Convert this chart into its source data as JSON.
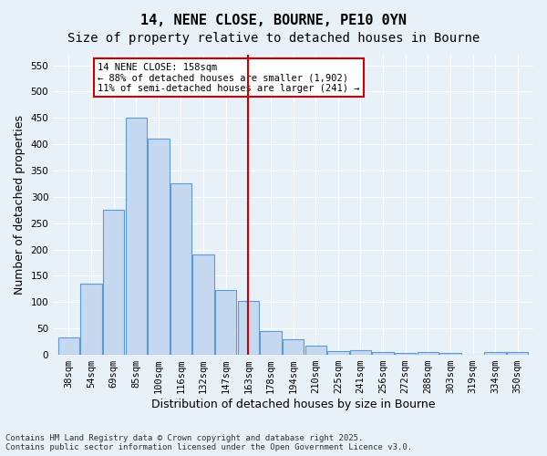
{
  "title": "14, NENE CLOSE, BOURNE, PE10 0YN",
  "subtitle": "Size of property relative to detached houses in Bourne",
  "xlabel": "Distribution of detached houses by size in Bourne",
  "ylabel": "Number of detached properties",
  "categories": [
    "38sqm",
    "54sqm",
    "69sqm",
    "85sqm",
    "100sqm",
    "116sqm",
    "132sqm",
    "147sqm",
    "163sqm",
    "178sqm",
    "194sqm",
    "210sqm",
    "225sqm",
    "241sqm",
    "256sqm",
    "272sqm",
    "288sqm",
    "303sqm",
    "319sqm",
    "334sqm",
    "350sqm"
  ],
  "values": [
    33,
    135,
    275,
    450,
    410,
    325,
    190,
    123,
    102,
    45,
    30,
    17,
    7,
    9,
    5,
    3,
    5,
    3,
    0,
    5,
    5
  ],
  "bar_color": "#c5d8f0",
  "bar_edge_color": "#5b9bd5",
  "vline_x": 8,
  "vline_color": "#cc0000",
  "annotation_text": "14 NENE CLOSE: 158sqm\n← 88% of detached houses are smaller (1,902)\n11% of semi-detached houses are larger (241) →",
  "annotation_box_color": "#ffffff",
  "annotation_box_edge": "#cc0000",
  "ylim": [
    0,
    570
  ],
  "yticks": [
    0,
    50,
    100,
    150,
    200,
    250,
    300,
    350,
    400,
    450,
    500,
    550
  ],
  "footer": "Contains HM Land Registry data © Crown copyright and database right 2025.\nContains public sector information licensed under the Open Government Licence v3.0.",
  "bg_color": "#e8f0f8",
  "grid_color": "#ffffff",
  "title_fontsize": 11,
  "subtitle_fontsize": 10,
  "label_fontsize": 9,
  "tick_fontsize": 7.5
}
